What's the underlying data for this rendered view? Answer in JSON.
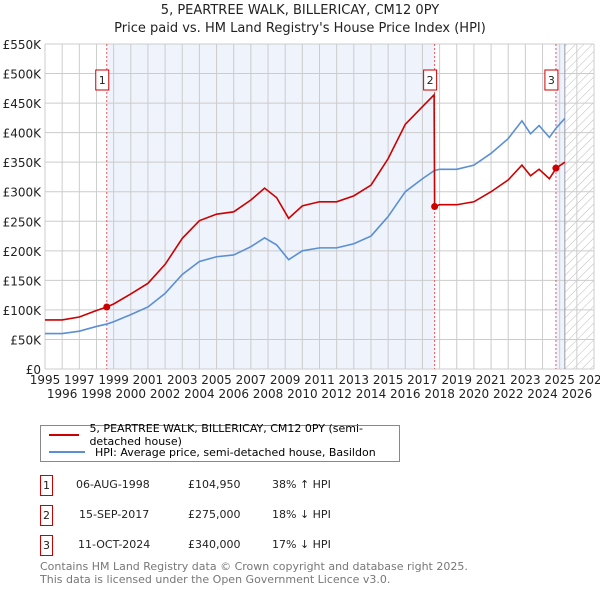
{
  "title": "5, PEARTREE WALK, BILLERICAY, CM12 0PY",
  "subtitle": "Price paid vs. HM Land Registry's House Price Index (HPI)",
  "legend": [
    {
      "label": "5, PEARTREE WALK, BILLERICAY, CM12 0PY (semi-detached house)",
      "color": "#cc0000"
    },
    {
      "label": "HPI: Average price, semi-detached house, Basildon",
      "color": "#5b8fd4"
    }
  ],
  "sales": [
    {
      "n": "1",
      "date": "06-AUG-1998",
      "price": "£104,950",
      "hpi": "38% ↑ HPI",
      "x": 1998.6,
      "y": 104.95
    },
    {
      "n": "2",
      "date": "15-SEP-2017",
      "price": "£275,000",
      "hpi": "18% ↓ HPI",
      "x": 2017.71,
      "y": 275
    },
    {
      "n": "3",
      "date": "11-OCT-2024",
      "price": "£340,000",
      "hpi": "17% ↓ HPI",
      "x": 2024.78,
      "y": 340
    }
  ],
  "footer": [
    "Contains HM Land Registry data © Crown copyright and database right 2025.",
    "This data is licensed under the Open Government Licence v3.0."
  ],
  "chart_data": {
    "type": "line",
    "xlim": [
      1995,
      2027
    ],
    "ylim": [
      0,
      550
    ],
    "yticks": [
      0,
      50,
      100,
      150,
      200,
      250,
      300,
      350,
      400,
      450,
      500,
      550
    ],
    "ytick_labels": [
      "£0",
      "£50K",
      "£100K",
      "£150K",
      "£200K",
      "£250K",
      "£300K",
      "£350K",
      "£400K",
      "£450K",
      "£500K",
      "£550K"
    ],
    "xticks": [
      1995,
      1996,
      1997,
      1998,
      1999,
      2000,
      2001,
      2002,
      2003,
      2004,
      2005,
      2006,
      2007,
      2008,
      2009,
      2010,
      2011,
      2012,
      2013,
      2014,
      2015,
      2016,
      2017,
      2018,
      2019,
      2020,
      2021,
      2022,
      2023,
      2024,
      2025,
      2026,
      2027
    ],
    "series": [
      {
        "name": "HPI",
        "x": [
          1995,
          1996,
          1997,
          1998,
          1998.6,
          1999,
          2000,
          2001,
          2002,
          2003,
          2004,
          2005,
          2006,
          2007,
          2007.8,
          2008.5,
          2009.2,
          2010,
          2011,
          2012,
          2013,
          2014,
          2015,
          2016,
          2017,
          2017.7,
          2018,
          2019,
          2020,
          2021,
          2022,
          2022.8,
          2023.3,
          2023.8,
          2024.4,
          2024.8,
          2025.3
        ],
        "y": [
          60,
          60,
          64,
          72,
          76,
          80,
          92,
          105,
          128,
          160,
          182,
          190,
          193,
          207,
          222,
          210,
          185,
          200,
          205,
          205,
          212,
          225,
          258,
          300,
          322,
          336,
          338,
          338,
          345,
          365,
          390,
          420,
          398,
          412,
          392,
          408,
          424
        ]
      },
      {
        "name": "Property",
        "x": [
          1995,
          1996,
          1997,
          1998,
          1998.6,
          1999,
          2000,
          2001,
          2002,
          2003,
          2004,
          2005,
          2006,
          2007,
          2007.8,
          2008.5,
          2009.2,
          2010,
          2011,
          2012,
          2013,
          2014,
          2015,
          2016,
          2017,
          2017.68,
          2017.71,
          2018,
          2019,
          2020,
          2021,
          2022,
          2022.8,
          2023.3,
          2023.8,
          2024.4,
          2024.8,
          2025.3
        ],
        "y": [
          83,
          83,
          88,
          99,
          105,
          110,
          127,
          145,
          177,
          221,
          251,
          262,
          266,
          286,
          306,
          290,
          255,
          276,
          283,
          283,
          293,
          311,
          356,
          414,
          444,
          464,
          275,
          278,
          278,
          283,
          300,
          320,
          345,
          327,
          338,
          322,
          340,
          350
        ]
      }
    ],
    "shaded": [
      [
        1998.6,
        2017.71
      ],
      [
        2024.78,
        2025.3
      ]
    ],
    "forecast_from": 2025.3
  }
}
